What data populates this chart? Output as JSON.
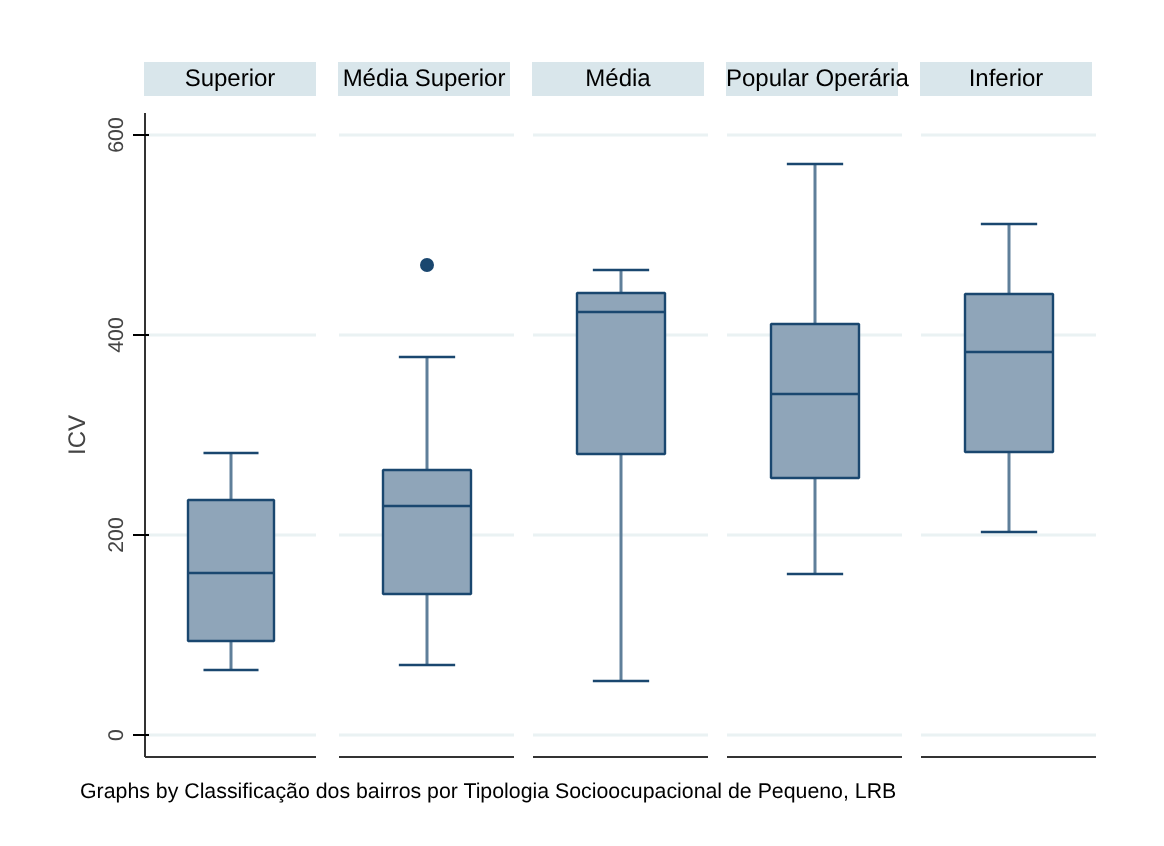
{
  "chart_data": {
    "type": "box",
    "categories": [
      "Superior",
      "Média Superior",
      "Média",
      "Popular Operária",
      "Inferior"
    ],
    "ylabel": "ICV",
    "ylim": [
      -22,
      622
    ],
    "yticks": [
      0,
      200,
      400,
      600
    ],
    "grid": "y",
    "series": [
      {
        "color": "#8fa5b9",
        "boxes": [
          {
            "low": 65,
            "q1": 94,
            "median": 162,
            "q3": 235,
            "high": 282
          },
          {
            "low": 70,
            "q1": 141,
            "median": 229,
            "q3": 265,
            "high": 378,
            "outliers": [
              470
            ]
          },
          {
            "low": 54,
            "q1": 281,
            "median": 423,
            "q3": 442,
            "high": 465
          },
          {
            "low": 161,
            "q1": 257,
            "median": 341,
            "q3": 411,
            "high": 571
          },
          {
            "low": 203,
            "q1": 283,
            "median": 383,
            "q3": 441,
            "high": 511
          }
        ]
      }
    ],
    "annotations": [
      "Graphs by  Classificação dos bairros por Tipologia Socioocupacional de Pequeno, LRB"
    ]
  }
}
